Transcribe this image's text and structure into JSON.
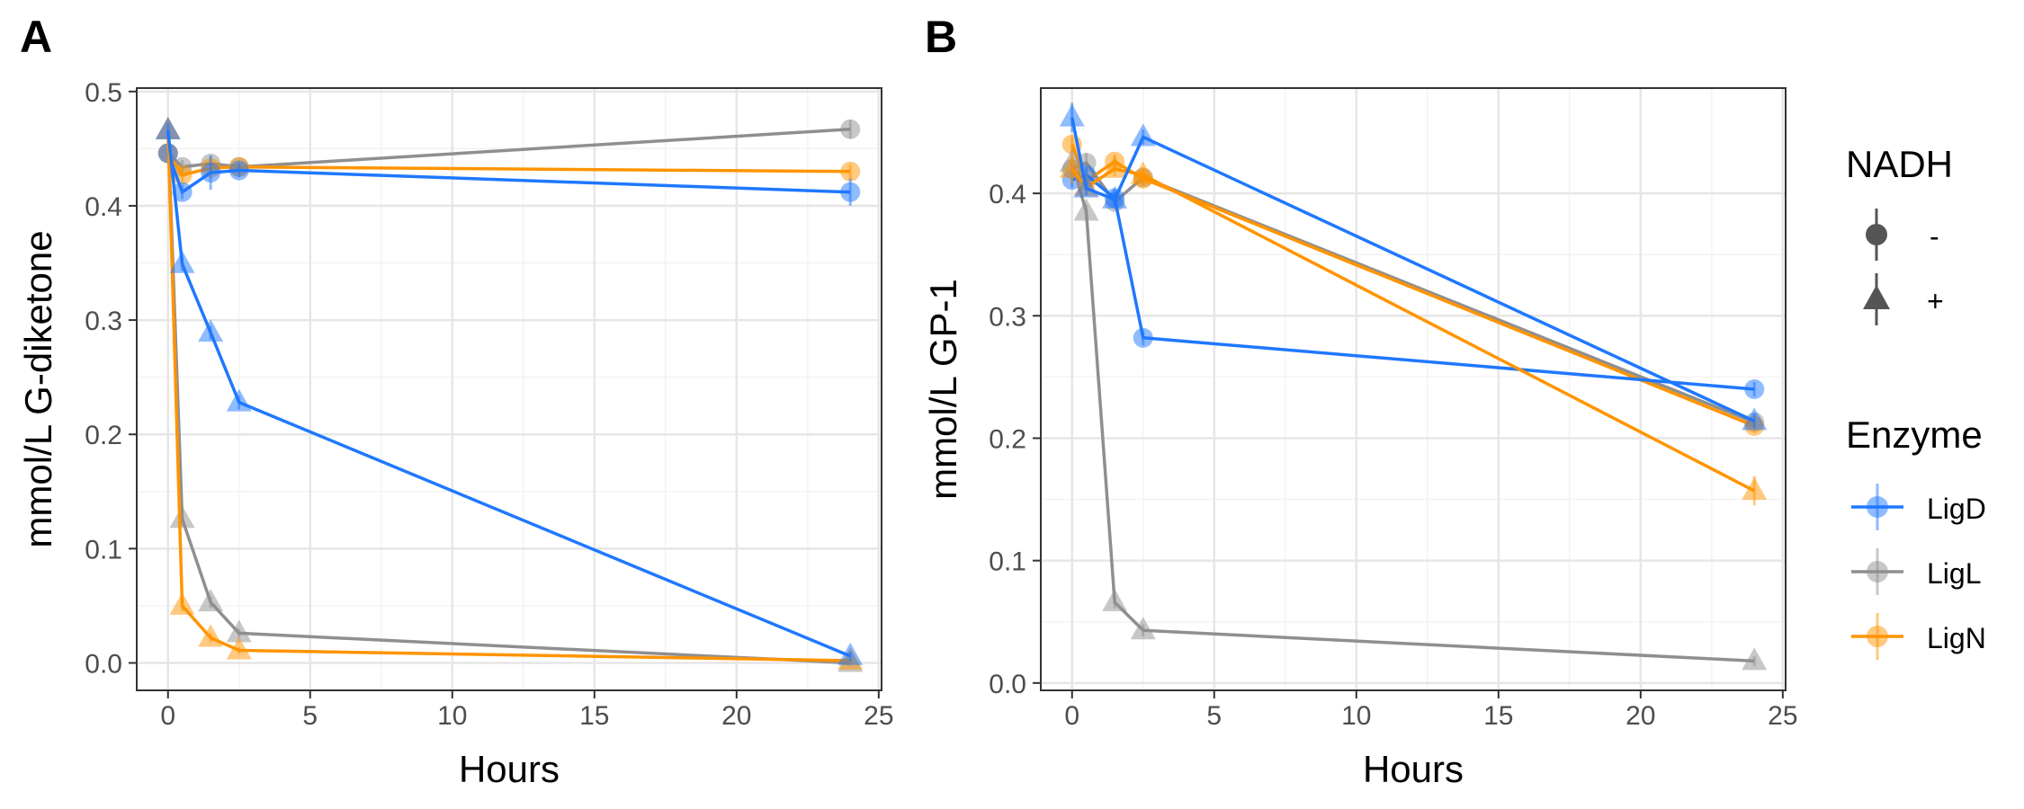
{
  "colors": {
    "LigD": "#1f78ff",
    "LigL": "#8f8f8f",
    "LigN": "#ff9400",
    "legend_shape": "#555555",
    "grid_major": "#e6e6e6",
    "grid_minor": "#f3f3f3",
    "axis": "#333333"
  },
  "legend": {
    "nadh_title": "NADH",
    "nadh_items": [
      {
        "label": "-",
        "shape": "circle"
      },
      {
        "label": "+",
        "shape": "triangle"
      }
    ],
    "enzyme_title": "Enzyme",
    "enzyme_items": [
      {
        "label": "LigD",
        "key": "LigD"
      },
      {
        "label": "LigL",
        "key": "LigL"
      },
      {
        "label": "LigN",
        "key": "LigN"
      }
    ]
  },
  "chart_data": [
    {
      "panel": "A",
      "type": "line",
      "xlabel": "Hours",
      "ylabel": "mmol/L G-diketone",
      "xlim": [
        -1.1,
        25.1
      ],
      "ylim": [
        -0.024,
        0.503
      ],
      "xticks": [
        0,
        5,
        10,
        15,
        20,
        25
      ],
      "xtick_labels": [
        "0",
        "5",
        "10",
        "15",
        "20",
        "25"
      ],
      "yticks": [
        0.0,
        0.1,
        0.2,
        0.3,
        0.4,
        0.5
      ],
      "ytick_labels": [
        "0.0",
        "0.1",
        "0.2",
        "0.3",
        "0.4",
        "0.5"
      ],
      "grid": true,
      "series": [
        {
          "enzyme": "LigL",
          "nadh": "-",
          "x": [
            0,
            0.5,
            1.5,
            2.5,
            24
          ],
          "y": [
            0.446,
            0.434,
            0.437,
            0.434,
            0.467
          ],
          "err": [
            0.005,
            0.006,
            0.006,
            0.005,
            0.008
          ]
        },
        {
          "enzyme": "LigN",
          "nadh": "-",
          "x": [
            0,
            0.5,
            1.5,
            2.5,
            24
          ],
          "y": [
            0.446,
            0.427,
            0.433,
            0.434,
            0.43
          ],
          "err": [
            0.005,
            0.006,
            0.006,
            0.005,
            0.006
          ]
        },
        {
          "enzyme": "LigD",
          "nadh": "-",
          "x": [
            0,
            0.5,
            1.5,
            2.5,
            24
          ],
          "y": [
            0.446,
            0.412,
            0.429,
            0.431,
            0.412
          ],
          "err": [
            0.005,
            0.006,
            0.015,
            0.006,
            0.012
          ]
        },
        {
          "enzyme": "LigL",
          "nadh": "+",
          "x": [
            0,
            0.5,
            1.5,
            2.5,
            24
          ],
          "y": [
            0.466,
            0.126,
            0.053,
            0.026,
            0.0
          ],
          "err": [
            0.006,
            0.006,
            0.005,
            0.004,
            0.003
          ]
        },
        {
          "enzyme": "LigN",
          "nadh": "+",
          "x": [
            0,
            0.5,
            1.5,
            2.5,
            24
          ],
          "y": [
            0.466,
            0.05,
            0.022,
            0.011,
            0.002
          ],
          "err": [
            0.006,
            0.005,
            0.004,
            0.003,
            0.003
          ]
        },
        {
          "enzyme": "LigD",
          "nadh": "+",
          "x": [
            0,
            0.5,
            1.5,
            2.5,
            24
          ],
          "y": [
            0.466,
            0.349,
            0.289,
            0.228,
            0.006
          ],
          "err": [
            0.006,
            0.006,
            0.006,
            0.006,
            0.004
          ]
        }
      ]
    },
    {
      "panel": "B",
      "type": "line",
      "xlabel": "Hours",
      "ylabel": "mmol/L GP-1",
      "xlim": [
        -1.1,
        25.1
      ],
      "ylim": [
        -0.006,
        0.486
      ],
      "xticks": [
        0,
        5,
        10,
        15,
        20,
        25
      ],
      "xtick_labels": [
        "0",
        "5",
        "10",
        "15",
        "20",
        "25"
      ],
      "yticks": [
        0.0,
        0.1,
        0.2,
        0.3,
        0.4
      ],
      "ytick_labels": [
        "0.0",
        "0.1",
        "0.2",
        "0.3",
        "0.4"
      ],
      "grid": true,
      "series": [
        {
          "enzyme": "LigL",
          "nadh": "-",
          "x": [
            0,
            0.5,
            1.5,
            2.5,
            24
          ],
          "y": [
            0.42,
            0.425,
            0.393,
            0.413,
            0.213
          ],
          "err": [
            0.006,
            0.008,
            0.006,
            0.006,
            0.006
          ]
        },
        {
          "enzyme": "LigN",
          "nadh": "-",
          "x": [
            0,
            0.5,
            1.5,
            2.5,
            24
          ],
          "y": [
            0.44,
            0.41,
            0.426,
            0.412,
            0.21
          ],
          "err": [
            0.006,
            0.006,
            0.006,
            0.006,
            0.006
          ]
        },
        {
          "enzyme": "LigD",
          "nadh": "-",
          "x": [
            0,
            0.5,
            1.5,
            2.5,
            24
          ],
          "y": [
            0.411,
            0.415,
            0.396,
            0.282,
            0.24
          ],
          "err": [
            0.006,
            0.006,
            0.006,
            0.006,
            0.006
          ]
        },
        {
          "enzyme": "LigL",
          "nadh": "+",
          "x": [
            0,
            0.5,
            1.5,
            2.5,
            24
          ],
          "y": [
            0.425,
            0.385,
            0.066,
            0.043,
            0.018
          ],
          "err": [
            0.006,
            0.006,
            0.005,
            0.005,
            0.004
          ]
        },
        {
          "enzyme": "LigN",
          "nadh": "+",
          "x": [
            0,
            0.5,
            1.5,
            2.5,
            24
          ],
          "y": [
            0.42,
            0.405,
            0.42,
            0.415,
            0.157
          ],
          "err": [
            0.012,
            0.006,
            0.006,
            0.006,
            0.012
          ]
        },
        {
          "enzyme": "LigD",
          "nadh": "+",
          "x": [
            0,
            0.5,
            1.5,
            2.5,
            24
          ],
          "y": [
            0.462,
            0.404,
            0.395,
            0.446,
            0.214
          ],
          "err": [
            0.012,
            0.006,
            0.006,
            0.006,
            0.006
          ]
        }
      ]
    }
  ]
}
